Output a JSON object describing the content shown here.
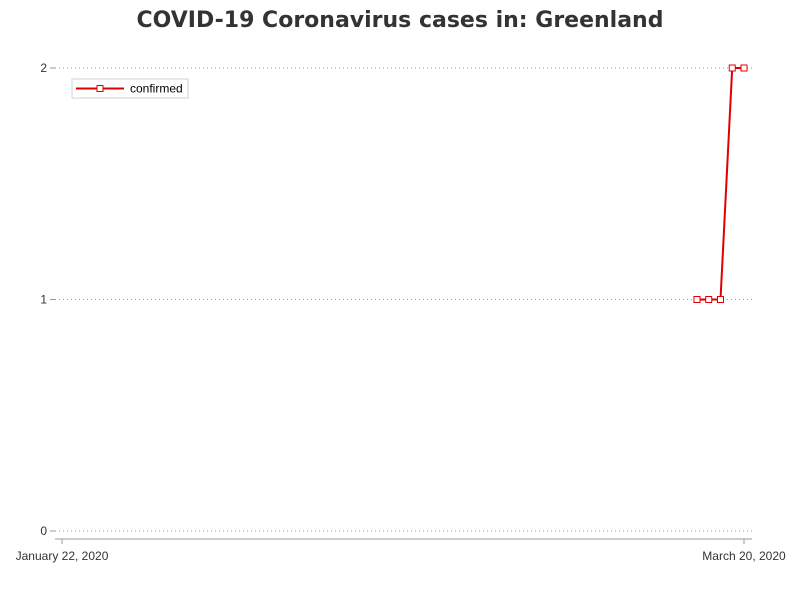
{
  "chart_data": {
    "type": "line",
    "title": "COVID-19 Coronavirus cases in: Greenland",
    "xlabel": "",
    "ylabel": "",
    "x_tick_labels": [
      "January 22, 2020",
      "March 20, 2020"
    ],
    "x_range": [
      "2020-01-22",
      "2020-03-20"
    ],
    "ylim": [
      0,
      2
    ],
    "y_ticks": [
      0,
      1,
      2
    ],
    "grid": "horizontal dotted",
    "legend_position": "top-left",
    "series": [
      {
        "name": "confirmed",
        "color": "#e00000",
        "marker": "square",
        "points": [
          {
            "x": "2020-03-16",
            "y": 1
          },
          {
            "x": "2020-03-17",
            "y": 1
          },
          {
            "x": "2020-03-18",
            "y": 1
          },
          {
            "x": "2020-03-19",
            "y": 2
          },
          {
            "x": "2020-03-20",
            "y": 2
          }
        ]
      }
    ]
  }
}
